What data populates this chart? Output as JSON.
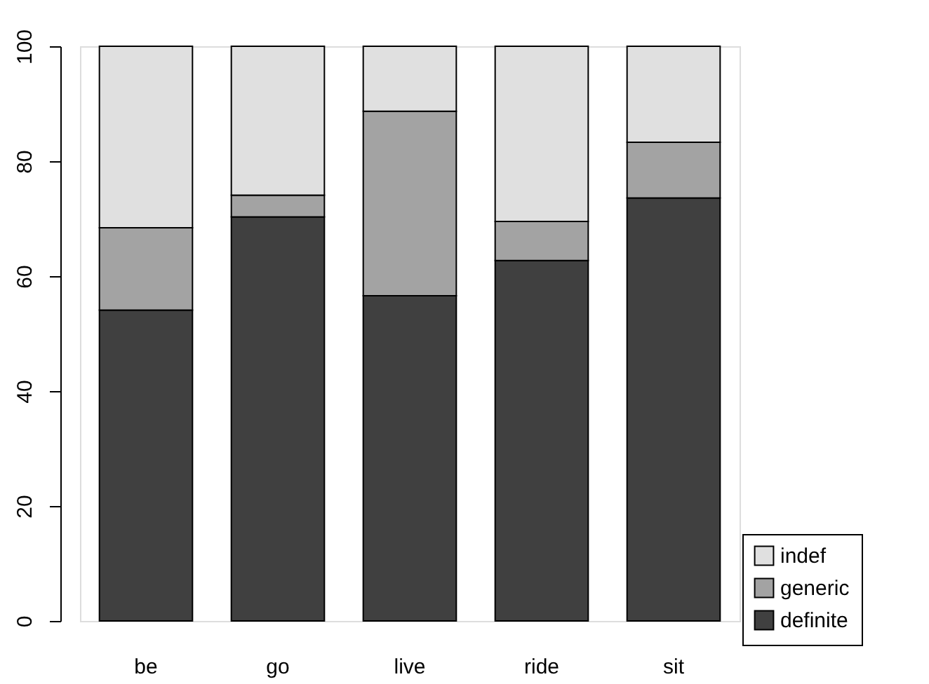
{
  "chart_data": {
    "type": "bar",
    "stacked": true,
    "categories": [
      "be",
      "go",
      "live",
      "ride",
      "sit"
    ],
    "series": [
      {
        "name": "definite",
        "color": "#404040",
        "values": [
          54.1,
          70.3,
          56.6,
          62.7,
          73.6
        ]
      },
      {
        "name": "generic",
        "color": "#a3a3a3",
        "values": [
          14.3,
          3.8,
          32.1,
          6.8,
          9.7
        ]
      },
      {
        "name": "indef",
        "color": "#e0e0e0",
        "values": [
          31.6,
          25.9,
          11.3,
          30.5,
          16.7
        ]
      }
    ],
    "ylim": [
      0,
      100
    ],
    "yticks": [
      0,
      20,
      40,
      60,
      80,
      100
    ],
    "grid": false,
    "legend": "bottom right"
  }
}
